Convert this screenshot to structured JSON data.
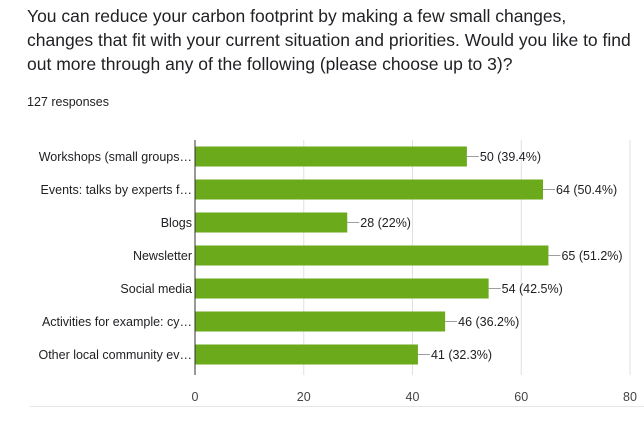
{
  "question": {
    "text": "You can reduce your carbon footprint by making a few small changes, changes that fit with your current situation and priorities. Would you like to find out more through any of the following (please choose up to 3)?",
    "responses_label": "127 responses"
  },
  "colors": {
    "bar": "#6aaa1b",
    "axis": "#333333",
    "grid": "#e0e0e0",
    "text": "#202124"
  },
  "chart_data": {
    "type": "bar",
    "orientation": "horizontal",
    "categories": [
      "Workshops (small groups…",
      "Events: talks by experts f…",
      "Blogs",
      "Newsletter",
      "Social media",
      "Activities for example: cy…",
      "Other local community ev…"
    ],
    "values": [
      50,
      64,
      28,
      65,
      54,
      46,
      41
    ],
    "data_labels": [
      "50 (39.4%)",
      "64 (50.4%)",
      "28 (22%)",
      "65 (51.2%)",
      "54 (42.5%)",
      "46 (36.2%)",
      "41 (32.3%)"
    ],
    "xlim": [
      0,
      80
    ],
    "xticks": [
      0,
      20,
      40,
      60,
      80
    ],
    "grid": true
  }
}
